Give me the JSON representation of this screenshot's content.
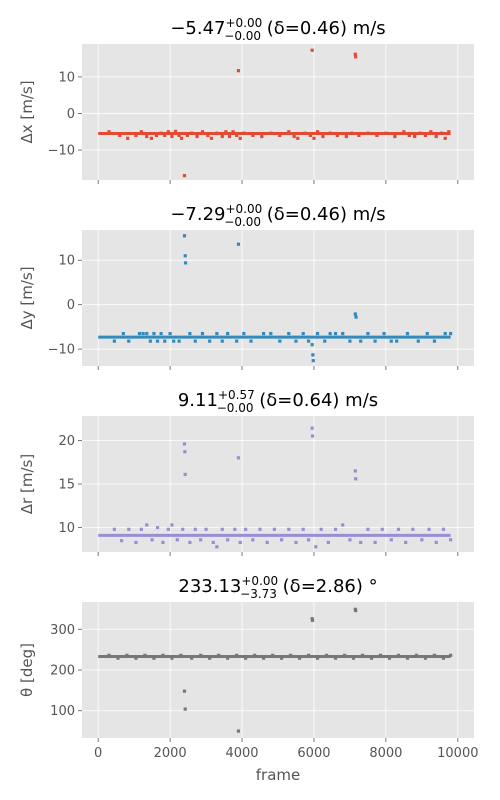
{
  "colors": {
    "panel_bg": "#e5e5e5",
    "grid": "#ffffff",
    "tick_text": "#555555",
    "series": [
      "#e24a33",
      "#348abd",
      "#988ed5",
      "#777777"
    ]
  },
  "xlabel": "frame",
  "x_ticks": [
    "0",
    "2000",
    "4000",
    "6000",
    "8000",
    "10000"
  ],
  "chart_data": [
    {
      "type": "scatter",
      "title": {
        "pre": "−5.47",
        "sup": "+0.00",
        "sub": "−0.00",
        "post": " (δ=0.46) m/s"
      },
      "ylabel": "Δx [m/s]",
      "xlim": [
        -450,
        10450
      ],
      "ylim": [
        -18.2,
        19.0
      ],
      "y_ticks": [
        -10,
        0,
        10
      ],
      "grid": true,
      "baseline": {
        "x": [
          0,
          9800
        ],
        "y": -5.47
      },
      "points": [
        [
          300,
          -5.0
        ],
        [
          600,
          -6.0
        ],
        [
          820,
          -6.8
        ],
        [
          1050,
          -6.0
        ],
        [
          1200,
          -5.0
        ],
        [
          1350,
          -6.3
        ],
        [
          1480,
          -6.8
        ],
        [
          1620,
          -6.0
        ],
        [
          1750,
          -5.4
        ],
        [
          1850,
          -6.0
        ],
        [
          1950,
          -5.0
        ],
        [
          2050,
          -6.3
        ],
        [
          2150,
          -4.9
        ],
        [
          2250,
          -6.0
        ],
        [
          2320,
          -6.8
        ],
        [
          2400,
          -17.0
        ],
        [
          2480,
          -6.0
        ],
        [
          2600,
          -5.4
        ],
        [
          2750,
          -6.3
        ],
        [
          2900,
          -5.0
        ],
        [
          3050,
          -6.0
        ],
        [
          3150,
          -6.8
        ],
        [
          3300,
          -5.4
        ],
        [
          3450,
          -6.3
        ],
        [
          3550,
          -5.0
        ],
        [
          3650,
          -6.3
        ],
        [
          3750,
          -5.0
        ],
        [
          3850,
          -6.0
        ],
        [
          3900,
          11.7
        ],
        [
          3950,
          -6.8
        ],
        [
          4050,
          -5.4
        ],
        [
          4300,
          -6.0
        ],
        [
          4550,
          -6.3
        ],
        [
          4800,
          -5.4
        ],
        [
          5050,
          -6.0
        ],
        [
          5300,
          -5.0
        ],
        [
          5450,
          -6.3
        ],
        [
          5550,
          -6.8
        ],
        [
          5750,
          -5.4
        ],
        [
          5900,
          -6.0
        ],
        [
          5950,
          17.3
        ],
        [
          6000,
          -6.8
        ],
        [
          6100,
          -5.0
        ],
        [
          6250,
          -6.3
        ],
        [
          6450,
          -5.4
        ],
        [
          6650,
          -6.0
        ],
        [
          6900,
          -6.3
        ],
        [
          7050,
          -5.4
        ],
        [
          7150,
          16.2
        ],
        [
          7160,
          15.5
        ],
        [
          7250,
          -6.0
        ],
        [
          7500,
          -5.4
        ],
        [
          7750,
          -6.0
        ],
        [
          8000,
          -5.4
        ],
        [
          8250,
          -6.3
        ],
        [
          8500,
          -5.0
        ],
        [
          8650,
          -6.0
        ],
        [
          8800,
          -6.3
        ],
        [
          8950,
          -5.4
        ],
        [
          9100,
          -6.0
        ],
        [
          9250,
          -5.0
        ],
        [
          9400,
          -6.3
        ],
        [
          9550,
          -5.4
        ],
        [
          9650,
          -6.8
        ],
        [
          9750,
          -5.0
        ]
      ]
    },
    {
      "type": "scatter",
      "title": {
        "pre": "−7.29",
        "sup": "+0.00",
        "sub": "−0.00",
        "post": " (δ=0.46) m/s"
      },
      "ylabel": "Δy [m/s]",
      "xlim": [
        -450,
        10450
      ],
      "ylim": [
        -13.8,
        16.8
      ],
      "y_ticks": [
        -10,
        0,
        10
      ],
      "grid": true,
      "baseline": {
        "x": [
          0,
          9800
        ],
        "y": -7.29
      },
      "points": [
        [
          450,
          -8.2
        ],
        [
          700,
          -6.5
        ],
        [
          850,
          -8.2
        ],
        [
          1150,
          -6.5
        ],
        [
          1250,
          -6.5
        ],
        [
          1350,
          -6.5
        ],
        [
          1450,
          -8.2
        ],
        [
          1550,
          -6.5
        ],
        [
          1650,
          -8.2
        ],
        [
          1750,
          -6.5
        ],
        [
          1850,
          -8.2
        ],
        [
          2000,
          -6.5
        ],
        [
          2100,
          -8.2
        ],
        [
          2250,
          -8.2
        ],
        [
          2400,
          15.5
        ],
        [
          2420,
          11.0
        ],
        [
          2430,
          9.4
        ],
        [
          2550,
          -6.5
        ],
        [
          2700,
          -8.2
        ],
        [
          2900,
          -6.5
        ],
        [
          3100,
          -8.2
        ],
        [
          3300,
          -6.5
        ],
        [
          3450,
          -8.2
        ],
        [
          3600,
          -6.5
        ],
        [
          3850,
          -8.2
        ],
        [
          3900,
          13.6
        ],
        [
          4050,
          -6.5
        ],
        [
          4250,
          -8.2
        ],
        [
          4600,
          -6.5
        ],
        [
          4800,
          -6.5
        ],
        [
          5050,
          -8.2
        ],
        [
          5300,
          -6.5
        ],
        [
          5500,
          -8.2
        ],
        [
          5700,
          -6.5
        ],
        [
          5850,
          -8.2
        ],
        [
          5950,
          -9.0
        ],
        [
          5970,
          -11.3
        ],
        [
          5980,
          -12.6
        ],
        [
          6100,
          -6.5
        ],
        [
          6300,
          -8.2
        ],
        [
          6450,
          -6.5
        ],
        [
          6600,
          -6.5
        ],
        [
          6800,
          -6.5
        ],
        [
          7000,
          -8.2
        ],
        [
          7150,
          -2.1
        ],
        [
          7170,
          -2.8
        ],
        [
          7300,
          -8.2
        ],
        [
          7500,
          -6.5
        ],
        [
          7700,
          -8.2
        ],
        [
          7950,
          -6.5
        ],
        [
          8150,
          -8.2
        ],
        [
          8300,
          -8.2
        ],
        [
          8600,
          -6.5
        ],
        [
          8900,
          -8.2
        ],
        [
          9150,
          -6.5
        ],
        [
          9350,
          -8.2
        ],
        [
          9650,
          -6.5
        ],
        [
          9800,
          -6.5
        ]
      ]
    },
    {
      "type": "scatter",
      "title": {
        "pre": "9.11",
        "sup": "+0.57",
        "sub": "−0.00",
        "post": " (δ=0.64) m/s"
      },
      "ylabel": "Δr [m/s]",
      "xlim": [
        -450,
        10450
      ],
      "ylim": [
        7.2,
        22.8
      ],
      "y_ticks": [
        10,
        15,
        20
      ],
      "grid": true,
      "baseline": {
        "x": [
          0,
          9800
        ],
        "y": 9.11
      },
      "points": [
        [
          450,
          9.8
        ],
        [
          650,
          8.5
        ],
        [
          850,
          9.8
        ],
        [
          1050,
          8.3
        ],
        [
          1200,
          9.8
        ],
        [
          1350,
          10.3
        ],
        [
          1500,
          8.6
        ],
        [
          1650,
          10.0
        ],
        [
          1800,
          8.3
        ],
        [
          1950,
          9.8
        ],
        [
          2050,
          10.3
        ],
        [
          2200,
          8.6
        ],
        [
          2350,
          9.8
        ],
        [
          2400,
          19.6
        ],
        [
          2410,
          18.7
        ],
        [
          2420,
          16.1
        ],
        [
          2550,
          8.3
        ],
        [
          2700,
          9.8
        ],
        [
          2850,
          8.6
        ],
        [
          3000,
          9.8
        ],
        [
          3200,
          8.3
        ],
        [
          3300,
          7.8
        ],
        [
          3450,
          9.8
        ],
        [
          3600,
          8.6
        ],
        [
          3800,
          9.8
        ],
        [
          3900,
          18.0
        ],
        [
          3950,
          8.3
        ],
        [
          4100,
          9.8
        ],
        [
          4300,
          8.6
        ],
        [
          4500,
          9.8
        ],
        [
          4700,
          8.3
        ],
        [
          4900,
          9.8
        ],
        [
          5100,
          8.6
        ],
        [
          5300,
          9.8
        ],
        [
          5500,
          8.3
        ],
        [
          5700,
          9.8
        ],
        [
          5850,
          8.6
        ],
        [
          5950,
          21.4
        ],
        [
          5960,
          20.5
        ],
        [
          6050,
          7.8
        ],
        [
          6200,
          9.8
        ],
        [
          6400,
          8.3
        ],
        [
          6600,
          9.8
        ],
        [
          6800,
          10.3
        ],
        [
          7000,
          8.6
        ],
        [
          7150,
          16.5
        ],
        [
          7160,
          15.6
        ],
        [
          7300,
          8.3
        ],
        [
          7500,
          9.8
        ],
        [
          7700,
          8.3
        ],
        [
          7900,
          9.8
        ],
        [
          8150,
          8.6
        ],
        [
          8350,
          9.8
        ],
        [
          8550,
          8.3
        ],
        [
          8750,
          9.8
        ],
        [
          9000,
          8.6
        ],
        [
          9200,
          9.8
        ],
        [
          9400,
          8.3
        ],
        [
          9600,
          9.8
        ],
        [
          9800,
          8.6
        ]
      ]
    },
    {
      "type": "scatter",
      "title": {
        "pre": "233.13",
        "sup": "+0.00",
        "sub": "−3.73",
        "post": " (δ=2.86) °"
      },
      "ylabel": "θ [deg]",
      "xlim": [
        -450,
        10450
      ],
      "ylim": [
        33,
        367
      ],
      "y_ticks": [
        100,
        200,
        300
      ],
      "grid": true,
      "baseline": {
        "x": [
          0,
          9800
        ],
        "y": 233.13
      },
      "points": [
        [
          300,
          236
        ],
        [
          550,
          229
        ],
        [
          800,
          236
        ],
        [
          1050,
          229
        ],
        [
          1300,
          236
        ],
        [
          1550,
          229
        ],
        [
          1800,
          236
        ],
        [
          2050,
          229
        ],
        [
          2300,
          236
        ],
        [
          2400,
          148
        ],
        [
          2420,
          104
        ],
        [
          2600,
          229
        ],
        [
          2850,
          236
        ],
        [
          3100,
          229
        ],
        [
          3350,
          236
        ],
        [
          3600,
          229
        ],
        [
          3850,
          236
        ],
        [
          3900,
          50
        ],
        [
          4100,
          229
        ],
        [
          4350,
          236
        ],
        [
          4600,
          229
        ],
        [
          4850,
          236
        ],
        [
          5100,
          229
        ],
        [
          5350,
          236
        ],
        [
          5600,
          229
        ],
        [
          5850,
          236
        ],
        [
          5950,
          326
        ],
        [
          5960,
          322
        ],
        [
          6100,
          229
        ],
        [
          6350,
          236
        ],
        [
          6600,
          229
        ],
        [
          6850,
          236
        ],
        [
          7100,
          229
        ],
        [
          7150,
          349
        ],
        [
          7160,
          346
        ],
        [
          7350,
          236
        ],
        [
          7600,
          229
        ],
        [
          7850,
          236
        ],
        [
          8100,
          229
        ],
        [
          8350,
          236
        ],
        [
          8600,
          229
        ],
        [
          8850,
          236
        ],
        [
          9100,
          229
        ],
        [
          9350,
          236
        ],
        [
          9600,
          229
        ],
        [
          9800,
          236
        ]
      ]
    }
  ]
}
